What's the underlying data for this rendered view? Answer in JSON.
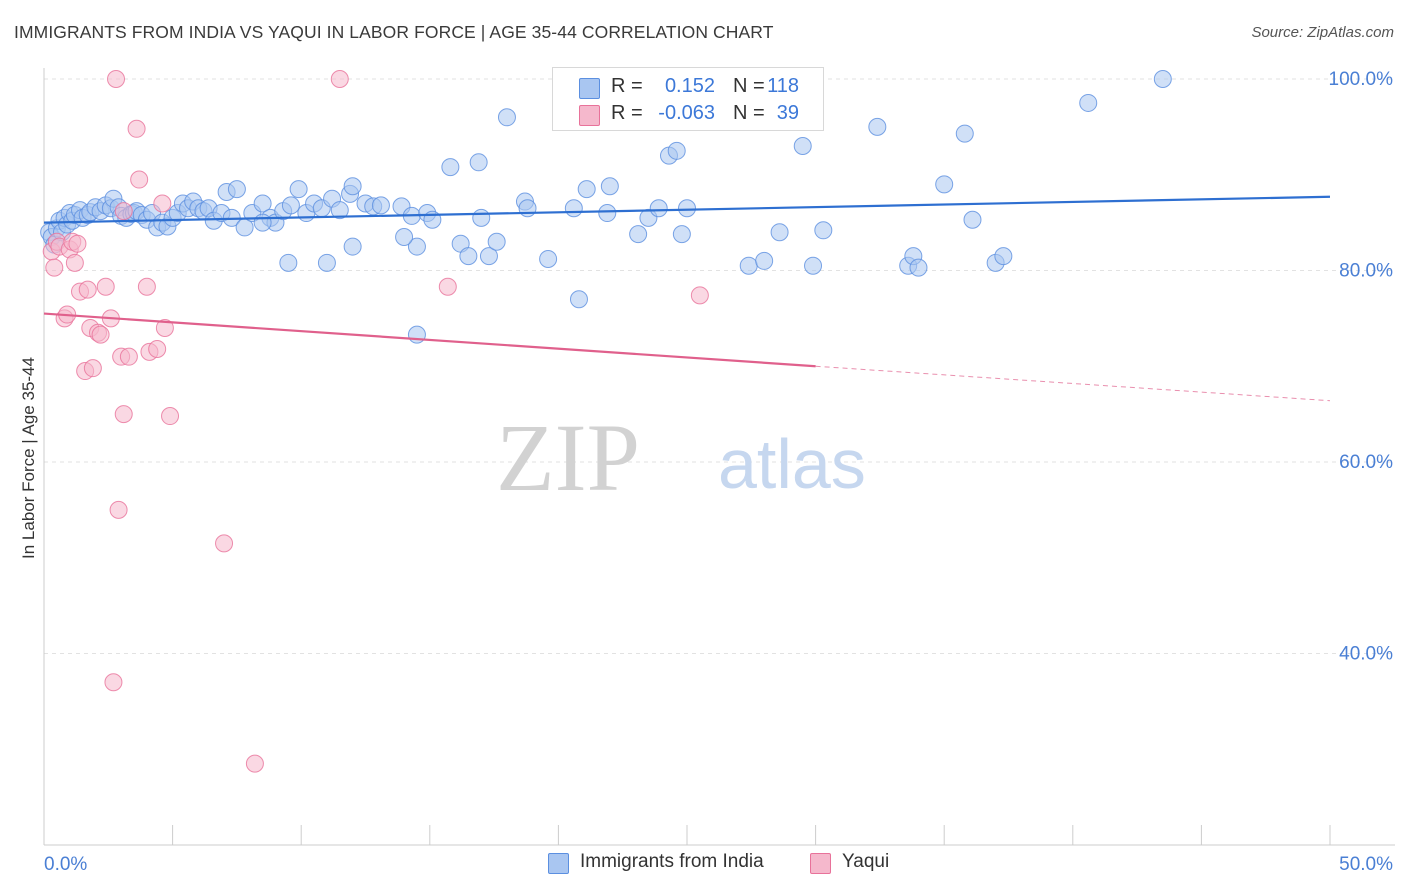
{
  "title": "IMMIGRANTS FROM INDIA VS YAQUI IN LABOR FORCE | AGE 35-44 CORRELATION CHART",
  "source": "Source: ZipAtlas.com",
  "watermark": {
    "zip": "ZIP",
    "atlas": "atlas"
  },
  "legend": {
    "india": {
      "r_label": "R =",
      "r_value": "0.152",
      "n_label": "N =",
      "n_value": "118"
    },
    "yaqui": {
      "r_label": "R =",
      "r_value": "-0.063",
      "n_label": "N =",
      "n_value": "39"
    }
  },
  "chart_data": {
    "type": "scatter",
    "title": "IMMIGRANTS FROM INDIA VS YAQUI IN LABOR FORCE | AGE 35-44 CORRELATION CHART",
    "xlabel": "",
    "ylabel": "In Labor Force | Age 35-44",
    "xlim": [
      0,
      50
    ],
    "ylim": [
      20,
      102
    ],
    "x_tick_labels": [
      "0.0%",
      "50.0%"
    ],
    "y_ticks": [
      40,
      60,
      80,
      100
    ],
    "y_tick_labels": [
      "40.0%",
      "60.0%",
      "80.0%",
      "100.0%"
    ],
    "grid": true,
    "colors": {
      "india": "#5b8fe0",
      "india_fill": "#a9c6f1",
      "yaqui": "#e8729a",
      "yaqui_fill": "#f5b8cc",
      "axis_text": "#4a7fd4"
    },
    "series": [
      {
        "name": "Immigrants from India",
        "trend": {
          "x": [
            0,
            50
          ],
          "y": [
            85.0,
            87.7
          ]
        },
        "points": [
          [
            0.2,
            84.0
          ],
          [
            0.3,
            83.5
          ],
          [
            0.4,
            82.7
          ],
          [
            0.5,
            84.4
          ],
          [
            0.6,
            85.2
          ],
          [
            0.7,
            84.0
          ],
          [
            0.8,
            85.5
          ],
          [
            0.9,
            84.8
          ],
          [
            1.0,
            86.0
          ],
          [
            1.1,
            85.2
          ],
          [
            1.2,
            85.8
          ],
          [
            1.4,
            86.3
          ],
          [
            1.5,
            85.5
          ],
          [
            1.7,
            85.8
          ],
          [
            1.8,
            86.1
          ],
          [
            2.0,
            86.6
          ],
          [
            2.2,
            86.2
          ],
          [
            2.4,
            86.8
          ],
          [
            2.6,
            86.5
          ],
          [
            2.7,
            87.5
          ],
          [
            2.9,
            86.6
          ],
          [
            3.0,
            85.7
          ],
          [
            3.2,
            85.5
          ],
          [
            3.4,
            85.9
          ],
          [
            3.5,
            86.0
          ],
          [
            3.6,
            86.2
          ],
          [
            3.8,
            85.8
          ],
          [
            4.0,
            85.3
          ],
          [
            4.2,
            86.0
          ],
          [
            4.4,
            84.5
          ],
          [
            4.6,
            85.0
          ],
          [
            4.8,
            84.6
          ],
          [
            5.0,
            85.5
          ],
          [
            5.2,
            86.0
          ],
          [
            5.4,
            87.0
          ],
          [
            5.6,
            86.5
          ],
          [
            5.8,
            87.2
          ],
          [
            6.0,
            86.5
          ],
          [
            6.2,
            86.2
          ],
          [
            6.4,
            86.5
          ],
          [
            6.6,
            85.2
          ],
          [
            6.9,
            86.0
          ],
          [
            7.1,
            88.2
          ],
          [
            7.3,
            85.5
          ],
          [
            7.5,
            88.5
          ],
          [
            7.8,
            84.5
          ],
          [
            8.1,
            86.0
          ],
          [
            8.5,
            87.0
          ],
          [
            8.8,
            85.5
          ],
          [
            9.0,
            85.0
          ],
          [
            9.3,
            86.2
          ],
          [
            9.6,
            86.8
          ],
          [
            9.9,
            88.5
          ],
          [
            10.2,
            86.0
          ],
          [
            10.5,
            87.0
          ],
          [
            10.8,
            86.5
          ],
          [
            11.2,
            87.5
          ],
          [
            11.5,
            86.3
          ],
          [
            11.9,
            88.0
          ],
          [
            12.0,
            88.8
          ],
          [
            12.5,
            87.0
          ],
          [
            12.8,
            86.7
          ],
          [
            13.1,
            86.8
          ],
          [
            13.9,
            86.7
          ],
          [
            14.3,
            85.7
          ],
          [
            14.9,
            86.0
          ],
          [
            15.1,
            85.3
          ],
          [
            14.5,
            82.5
          ],
          [
            14.0,
            83.5
          ],
          [
            12.0,
            82.5
          ],
          [
            11.0,
            80.8
          ],
          [
            9.5,
            80.8
          ],
          [
            8.5,
            85.0
          ],
          [
            15.8,
            90.8
          ],
          [
            16.2,
            82.8
          ],
          [
            16.9,
            91.3
          ],
          [
            16.5,
            81.5
          ],
          [
            17.3,
            81.5
          ],
          [
            17.6,
            83.0
          ],
          [
            17.0,
            85.5
          ],
          [
            18.0,
            96.0
          ],
          [
            18.7,
            87.2
          ],
          [
            18.8,
            86.5
          ],
          [
            19.6,
            81.2
          ],
          [
            20.6,
            86.5
          ],
          [
            20.8,
            77.0
          ],
          [
            21.1,
            88.5
          ],
          [
            21.9,
            86.0
          ],
          [
            22.0,
            88.8
          ],
          [
            23.1,
            83.8
          ],
          [
            23.5,
            85.5
          ],
          [
            23.9,
            86.5
          ],
          [
            24.3,
            92.0
          ],
          [
            24.6,
            92.5
          ],
          [
            24.8,
            83.8
          ],
          [
            25.0,
            86.5
          ],
          [
            27.4,
            80.5
          ],
          [
            28.0,
            81.0
          ],
          [
            28.6,
            84.0
          ],
          [
            29.5,
            93.0
          ],
          [
            29.9,
            80.5
          ],
          [
            30.3,
            84.2
          ],
          [
            32.4,
            95.0
          ],
          [
            33.6,
            80.5
          ],
          [
            33.8,
            81.5
          ],
          [
            34.0,
            80.3
          ],
          [
            35.0,
            89.0
          ],
          [
            35.8,
            94.3
          ],
          [
            36.1,
            85.3
          ],
          [
            37.0,
            80.8
          ],
          [
            37.3,
            81.5
          ],
          [
            40.6,
            97.5
          ],
          [
            43.5,
            100.0
          ],
          [
            14.5,
            73.3
          ]
        ]
      },
      {
        "name": "Yaqui",
        "trend": {
          "x": [
            0,
            30
          ],
          "y": [
            75.5,
            70.0
          ]
        },
        "trend_dashed": {
          "x": [
            30,
            50
          ],
          "y": [
            70.0,
            66.4
          ]
        },
        "points": [
          [
            0.3,
            82.0
          ],
          [
            0.4,
            80.3
          ],
          [
            0.5,
            83.0
          ],
          [
            0.6,
            82.5
          ],
          [
            0.8,
            75.0
          ],
          [
            0.9,
            75.4
          ],
          [
            1.0,
            82.2
          ],
          [
            1.1,
            83.0
          ],
          [
            1.2,
            80.8
          ],
          [
            1.3,
            82.8
          ],
          [
            1.4,
            77.8
          ],
          [
            1.6,
            69.5
          ],
          [
            1.7,
            78.0
          ],
          [
            1.8,
            74.0
          ],
          [
            1.9,
            69.8
          ],
          [
            2.1,
            73.5
          ],
          [
            2.2,
            73.3
          ],
          [
            2.4,
            78.3
          ],
          [
            2.6,
            75.0
          ],
          [
            2.8,
            100.0
          ],
          [
            3.0,
            71.0
          ],
          [
            3.1,
            65.0
          ],
          [
            3.3,
            71.0
          ],
          [
            3.6,
            94.8
          ],
          [
            3.7,
            89.5
          ],
          [
            4.0,
            78.3
          ],
          [
            4.1,
            71.5
          ],
          [
            4.4,
            71.8
          ],
          [
            4.6,
            87.0
          ],
          [
            4.7,
            74.0
          ],
          [
            4.9,
            64.8
          ],
          [
            2.7,
            37.0
          ],
          [
            2.9,
            55.0
          ],
          [
            7.0,
            51.5
          ],
          [
            8.2,
            28.5
          ],
          [
            11.5,
            100.0
          ],
          [
            15.7,
            78.3
          ],
          [
            25.5,
            77.4
          ],
          [
            3.1,
            86.2
          ]
        ]
      }
    ]
  },
  "bottom_legend": {
    "india": "Immigrants from India",
    "yaqui": "Yaqui"
  }
}
